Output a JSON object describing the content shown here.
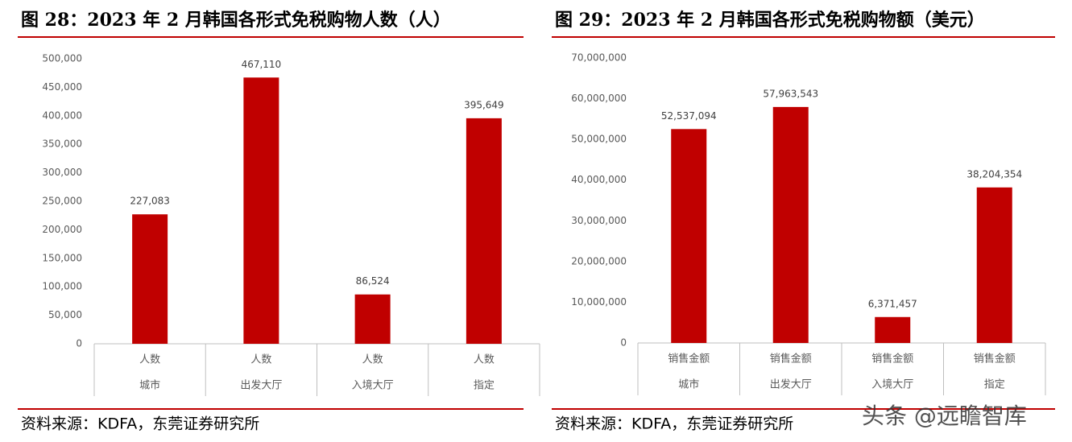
{
  "chart_data": [
    {
      "type": "bar",
      "title": "图 28：2023 年 2 月韩国各形式免税购物人数（人）",
      "categories": [
        "城市",
        "出发大厅",
        "入境大厅",
        "指定"
      ],
      "series": [
        {
          "name": "人数",
          "color": "#c00000",
          "values": [
            227083,
            467110,
            86524,
            395649
          ],
          "value_labels": [
            "227,083",
            "467,110",
            "86,524",
            "395,649"
          ]
        }
      ],
      "ylim": [
        0,
        500000
      ],
      "yticks": [
        0,
        {
          "value": 50000,
          "label": "50,000"
        },
        {
          "value": 100000,
          "label": "100,000"
        },
        {
          "value": 150000,
          "label": "150,000"
        },
        {
          "value": 200000,
          "label": "200,000"
        },
        {
          "value": 250000,
          "label": "250,000"
        },
        {
          "value": 300000,
          "label": "300,000"
        },
        {
          "value": 350000,
          "label": "350,000"
        },
        {
          "value": 400000,
          "label": "400,000"
        },
        {
          "value": 450000,
          "label": "450,000"
        },
        {
          "value": 500000,
          "label": "500,000"
        }
      ],
      "source": "资料来源：KDFA，东莞证券研究所"
    },
    {
      "type": "bar",
      "title": "图 29：2023 年 2 月韩国各形式免税购物额（美元）",
      "categories": [
        "城市",
        "出发大厅",
        "入境大厅",
        "指定"
      ],
      "series": [
        {
          "name": "销售金额",
          "color": "#c00000",
          "values": [
            52537094,
            57963543,
            6371457,
            38204354
          ],
          "value_labels": [
            "52,537,094",
            "57,963,543",
            "6,371,457",
            "38,204,354"
          ]
        }
      ],
      "ylim": [
        0,
        70000000
      ],
      "yticks": [
        0,
        {
          "value": 10000000,
          "label": "10,000,000"
        },
        {
          "value": 20000000,
          "label": "20,000,000"
        },
        {
          "value": 30000000,
          "label": "30,000,000"
        },
        {
          "value": 40000000,
          "label": "40,000,000"
        },
        {
          "value": 50000000,
          "label": "50,000,000"
        },
        {
          "value": 60000000,
          "label": "60,000,000"
        },
        {
          "value": 70000000,
          "label": "70,000,000"
        }
      ],
      "source": "资料来源：KDFA，东莞证券研究所"
    }
  ],
  "watermark": "头条 @远瞻智库"
}
